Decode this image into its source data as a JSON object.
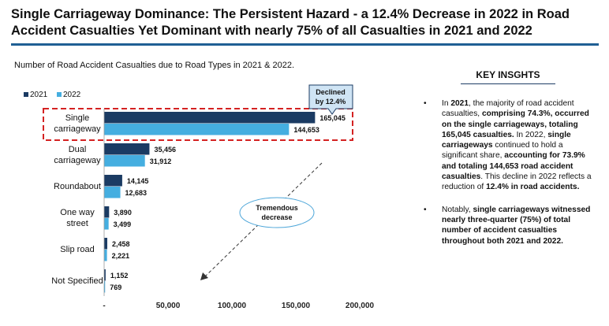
{
  "title": "Single Carriageway Dominance: The Persistent Hazard - a 12.4% Decrease in 2022 in Road Accident Casualties Yet Dominant with nearly 75% of all Casualties in 2021 and 2022",
  "subtitle": "Number of Road Accident Casualties due to Road Types in 2021 & 2022.",
  "colors": {
    "series_2021": "#1b3b63",
    "series_2022": "#45aee0",
    "highlight": "#d42222",
    "rule": "#1f5f94"
  },
  "chart_data": {
    "type": "bar",
    "orientation": "horizontal",
    "categories": [
      "Single\ncarriageway",
      "Dual\ncarriageway",
      "Roundabout",
      "One way\nstreet",
      "Slip road",
      "Not Specified"
    ],
    "series": [
      {
        "name": "2021",
        "values": [
          165045,
          35456,
          14145,
          3890,
          2458,
          1152
        ],
        "labels": [
          "165,045",
          "35,456",
          "14,145",
          "3,890",
          "2,458",
          "1,152"
        ]
      },
      {
        "name": "2022",
        "values": [
          144653,
          31912,
          12683,
          3499,
          2221,
          769
        ],
        "labels": [
          "144,653",
          "31,912",
          "12,683",
          "3,499",
          "2,221",
          "769"
        ]
      }
    ],
    "xlim": [
      0,
      200000
    ],
    "xticks": [
      0,
      50000,
      100000,
      150000,
      200000
    ],
    "xtick_labels": [
      "-",
      "50,000",
      "100,000",
      "150,000",
      "200,000"
    ],
    "legend_position": "top-left",
    "grid": false,
    "annotations": [
      {
        "text": "Declined\nby 12.4%",
        "target": "Single\ncarriageway"
      },
      {
        "text": "Tremendous\ndecrease"
      }
    ]
  },
  "insights": {
    "heading": "KEY INSGHTS",
    "bullets": [
      [
        {
          "t": "In ",
          "b": false
        },
        {
          "t": "2021",
          "b": true
        },
        {
          "t": ", the majority of road accident casualties, ",
          "b": false
        },
        {
          "t": "comprising 74.3%, occurred on the single carriageways, totaling 165,045 casualties.",
          "b": true
        },
        {
          "t": " In 2022, ",
          "b": false
        },
        {
          "t": "single carriageways",
          "b": true
        },
        {
          "t": " continued to hold a significant share, ",
          "b": false
        },
        {
          "t": "accounting for 73.9% and totaling 144,653 road accident casualties",
          "b": true
        },
        {
          "t": ". This decline in 2022 reflects a reduction of ",
          "b": false
        },
        {
          "t": "12.4% in road accidents.",
          "b": true
        }
      ],
      [
        {
          "t": "Notably, ",
          "b": false
        },
        {
          "t": "single carriageways witnessed nearly three-quarter (75%) of total number of accident casualties throughout both 2021 and 2022.",
          "b": true
        }
      ]
    ]
  }
}
